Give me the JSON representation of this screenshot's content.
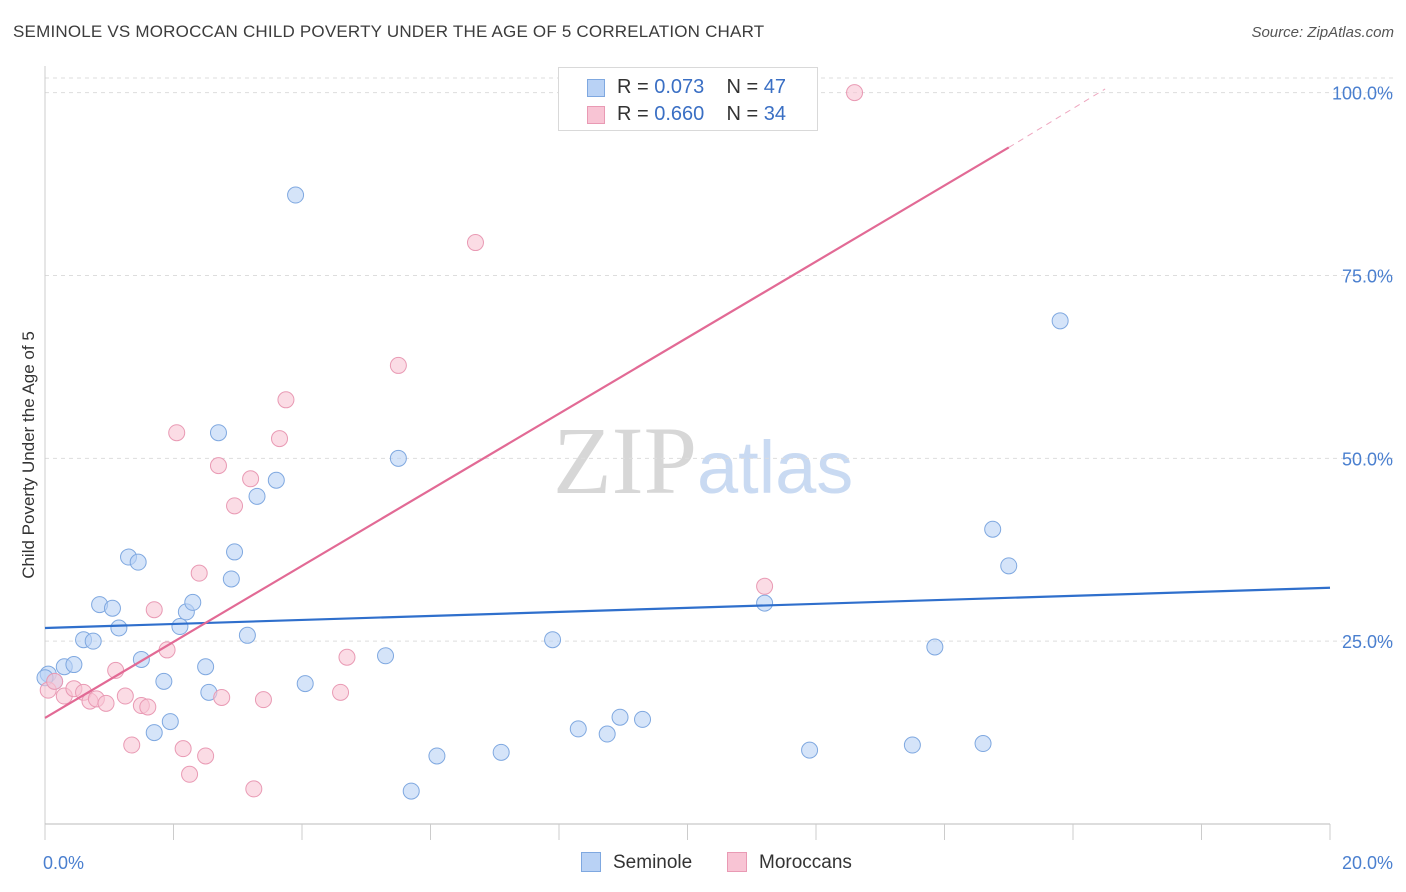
{
  "title": "SEMINOLE VS MOROCCAN CHILD POVERTY UNDER THE AGE OF 5 CORRELATION CHART",
  "source": "Source: ZipAtlas.com",
  "watermark": {
    "zip": "ZIP",
    "atlas": "atlas"
  },
  "legend_top": {
    "seminole": {
      "r_label": "R = ",
      "r_value": "0.073",
      "n_label": "N = ",
      "n_value": "47"
    },
    "moroccans": {
      "r_label": "R = ",
      "r_value": "0.660",
      "n_label": "N = ",
      "n_value": "34"
    }
  },
  "legend_bottom": {
    "seminole": "Seminole",
    "moroccans": "Moroccans"
  },
  "colors": {
    "seminole_fill": "#b9d2f5",
    "seminole_stroke": "#7fa8e0",
    "seminole_line": "#2f6fcc",
    "moroccan_fill": "#f8c4d4",
    "moroccan_stroke": "#e99ab4",
    "moroccan_line": "#e26a95",
    "grid": "#dddddd",
    "tick_text": "#4a7fcf"
  },
  "chart_data": {
    "type": "scatter",
    "title": "SEMINOLE VS MOROCCAN CHILD POVERTY UNDER THE AGE OF 5 CORRELATION CHART",
    "xlabel": "",
    "ylabel": "Child Poverty Under the Age of 5",
    "xlim": [
      0,
      20
    ],
    "ylim": [
      0,
      102
    ],
    "x_tick_labels": [
      "0.0%",
      "20.0%"
    ],
    "y_ticks": [
      25,
      50,
      75,
      100
    ],
    "y_tick_labels": [
      "25.0%",
      "50.0%",
      "75.0%",
      "100.0%"
    ],
    "grid": true,
    "legend": "top-center",
    "series": [
      {
        "name": "Seminole",
        "points": [
          [
            0.05,
            20.5
          ],
          [
            0.15,
            19.5
          ],
          [
            0.3,
            21.5
          ],
          [
            0.45,
            21.8
          ],
          [
            0.6,
            25.2
          ],
          [
            0.75,
            25.0
          ],
          [
            0.85,
            30.0
          ],
          [
            1.05,
            29.5
          ],
          [
            1.15,
            26.8
          ],
          [
            1.3,
            36.5
          ],
          [
            1.45,
            35.8
          ],
          [
            1.5,
            22.5
          ],
          [
            1.7,
            12.5
          ],
          [
            1.85,
            19.5
          ],
          [
            1.95,
            14.0
          ],
          [
            2.1,
            27.0
          ],
          [
            2.2,
            29.0
          ],
          [
            2.3,
            30.3
          ],
          [
            2.5,
            21.5
          ],
          [
            2.55,
            18.0
          ],
          [
            2.7,
            53.5
          ],
          [
            2.9,
            33.5
          ],
          [
            2.95,
            37.2
          ],
          [
            3.15,
            25.8
          ],
          [
            3.3,
            44.8
          ],
          [
            3.6,
            47.0
          ],
          [
            3.9,
            86.0
          ],
          [
            4.05,
            19.2
          ],
          [
            5.3,
            23.0
          ],
          [
            5.5,
            50.0
          ],
          [
            5.7,
            4.5
          ],
          [
            6.1,
            9.3
          ],
          [
            7.1,
            9.8
          ],
          [
            7.9,
            25.2
          ],
          [
            8.3,
            13.0
          ],
          [
            8.75,
            12.3
          ],
          [
            8.95,
            14.6
          ],
          [
            9.3,
            14.3
          ],
          [
            11.2,
            30.2
          ],
          [
            11.9,
            10.1
          ],
          [
            13.5,
            10.8
          ],
          [
            13.85,
            24.2
          ],
          [
            14.6,
            11.0
          ],
          [
            14.75,
            40.3
          ],
          [
            15.0,
            35.3
          ],
          [
            15.8,
            68.8
          ],
          [
            0.0,
            20.0
          ]
        ],
        "trend": [
          [
            0,
            26.8
          ],
          [
            20,
            32.3
          ]
        ]
      },
      {
        "name": "Moroccans",
        "points": [
          [
            0.05,
            18.3
          ],
          [
            0.15,
            19.5
          ],
          [
            0.3,
            17.5
          ],
          [
            0.45,
            18.5
          ],
          [
            0.6,
            18.0
          ],
          [
            0.7,
            16.8
          ],
          [
            0.8,
            17.1
          ],
          [
            0.95,
            16.5
          ],
          [
            1.1,
            21.0
          ],
          [
            1.25,
            17.5
          ],
          [
            1.35,
            10.8
          ],
          [
            1.5,
            16.2
          ],
          [
            1.6,
            16.0
          ],
          [
            1.7,
            29.3
          ],
          [
            1.9,
            23.8
          ],
          [
            2.05,
            53.5
          ],
          [
            2.15,
            10.3
          ],
          [
            2.25,
            6.8
          ],
          [
            2.4,
            34.3
          ],
          [
            2.5,
            9.3
          ],
          [
            2.7,
            49.0
          ],
          [
            2.75,
            17.3
          ],
          [
            2.95,
            43.5
          ],
          [
            3.2,
            47.2
          ],
          [
            3.25,
            4.8
          ],
          [
            3.4,
            17.0
          ],
          [
            3.65,
            52.7
          ],
          [
            3.75,
            58.0
          ],
          [
            4.6,
            18.0
          ],
          [
            4.7,
            22.8
          ],
          [
            5.5,
            62.7
          ],
          [
            6.7,
            79.5
          ],
          [
            11.2,
            32.5
          ],
          [
            12.6,
            100.0
          ]
        ],
        "trend": [
          [
            0,
            14.5
          ],
          [
            15.0,
            92.5
          ]
        ],
        "trend_dashed_extension": [
          [
            15.0,
            92.5
          ],
          [
            16.5,
            100.5
          ]
        ]
      }
    ]
  }
}
